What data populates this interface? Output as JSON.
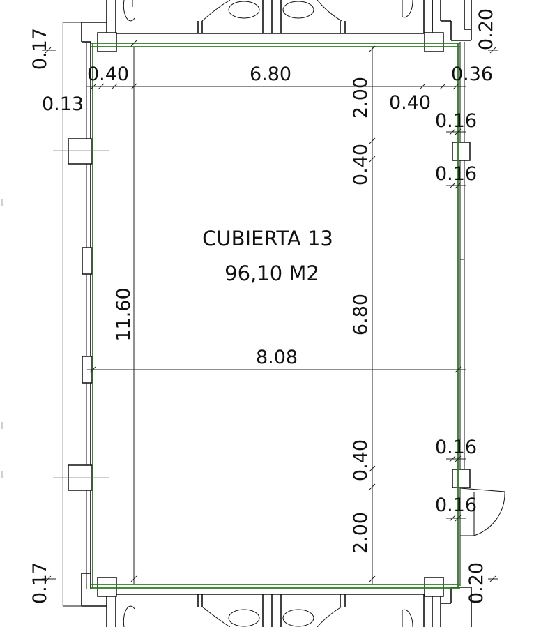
{
  "room": {
    "name": "CUBIERTA 13",
    "area": "96,10 M2"
  },
  "dimensions": {
    "top_left_vertical": "0.17",
    "top_left_horizontal": "0.40",
    "top_span": "6.80",
    "top_left_offset": "0.13",
    "top_right_horizontal": "0.36",
    "top_right_offset": "0.40",
    "top_right_vertical": "0.20",
    "upper_right_column_a": "0.16",
    "upper_right_column_b": "0.16",
    "vertical_top_segment": "2.00",
    "vertical_upper_column": "0.40",
    "vertical_middle_segment": "6.80",
    "left_height": "11.60",
    "width": "8.08",
    "lower_right_column_a": "0.16",
    "lower_right_column_b": "0.16",
    "vertical_lower_column": "0.40",
    "vertical_bottom_segment": "2.00",
    "bottom_left_vertical": "0.17",
    "bottom_right_vertical": "0.20"
  },
  "colors": {
    "wall": "#111111",
    "boundary": "#2d7a1f",
    "background": "#ffffff"
  }
}
